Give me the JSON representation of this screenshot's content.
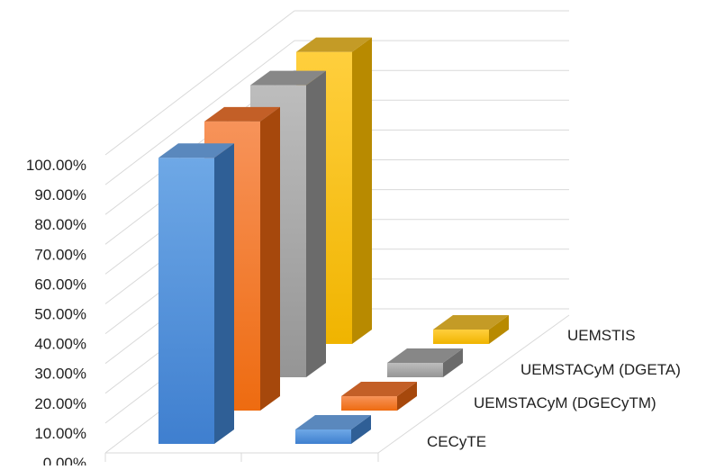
{
  "chart_data": {
    "type": "bar",
    "variant": "3d-column",
    "title": "",
    "xlabel": "",
    "ylabel": "",
    "ylim": [
      0,
      1
    ],
    "y_ticks": [
      "0.00%",
      "10.00%",
      "20.00%",
      "30.00%",
      "40.00%",
      "50.00%",
      "60.00%",
      "70.00%",
      "80.00%",
      "90.00%",
      "100.00%"
    ],
    "categories": [
      "",
      ""
    ],
    "grid": true,
    "series": [
      {
        "name": "CECyTE",
        "color": "#4f90dc",
        "values": [
          0.96,
          0.03
        ]
      },
      {
        "name": "UEMSTACyM (DGECyTM)",
        "color": "#f47b25",
        "values": [
          0.97,
          0.03
        ]
      },
      {
        "name": "UEMSTACyM (DGETA)",
        "color": "#a6a6a6",
        "values": [
          0.98,
          0.03
        ]
      },
      {
        "name": "UEMSTIS",
        "color": "#ffc000",
        "values": [
          0.98,
          0.03
        ]
      }
    ]
  }
}
